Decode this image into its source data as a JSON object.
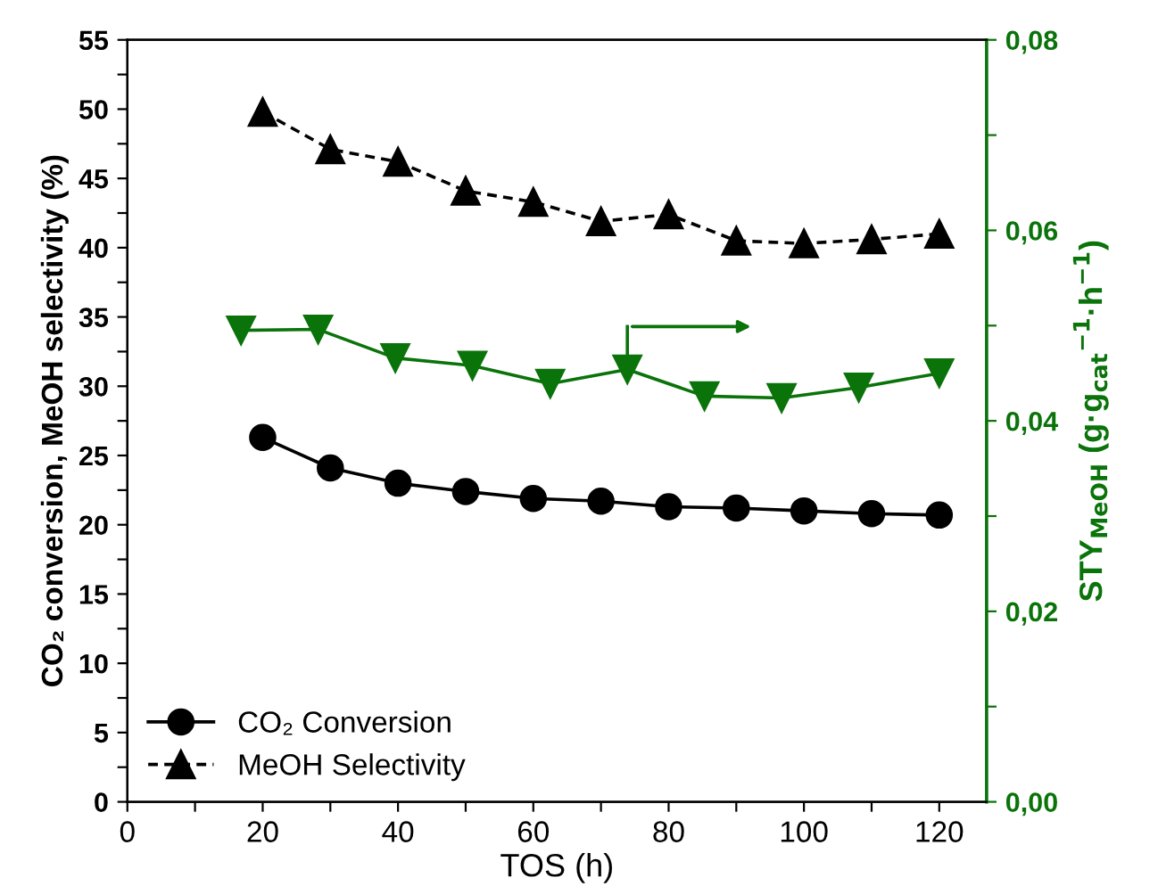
{
  "chart_data": {
    "type": "line",
    "xlabel": "TOS (h)",
    "ylabel": "CO₂ conversion, MeOH selectivity (%)",
    "y2label": "STY$_{MeOH}$ (g·g$_{cat}$$^{−1}$·h$^{−1}$)",
    "xlim": [
      0,
      127
    ],
    "xticks": [
      0,
      {
        "value": 10,
        "label": null
      },
      20,
      {
        "value": 30,
        "label": null
      },
      40,
      {
        "value": 50,
        "label": null
      },
      60,
      {
        "value": 70,
        "label": null
      },
      80,
      {
        "value": 90,
        "label": null
      },
      100,
      {
        "value": 110,
        "label": null
      },
      120
    ],
    "ylim": [
      0,
      55
    ],
    "yticks": [
      0,
      {
        "value": 2.5,
        "label": null
      },
      5,
      {
        "value": 7.5,
        "label": null
      },
      10,
      {
        "value": 12.5,
        "label": null
      },
      15,
      {
        "value": 17.5,
        "label": null
      },
      20,
      {
        "value": 22.5,
        "label": null
      },
      25,
      {
        "value": 27.5,
        "label": null
      },
      30,
      {
        "value": 32.5,
        "label": null
      },
      35,
      {
        "value": 37.5,
        "label": null
      },
      40,
      {
        "value": 42.5,
        "label": null
      },
      45,
      {
        "value": 47.5,
        "label": null
      },
      50,
      {
        "value": 52.5,
        "label": null
      },
      55
    ],
    "y2lim": [
      0,
      0.08
    ],
    "y2ticks": [
      {
        "value": 0,
        "label": "0,00"
      },
      {
        "value": 0.01,
        "label": null
      },
      {
        "value": 0.02,
        "label": "0,02"
      },
      {
        "value": 0.03,
        "label": null
      },
      {
        "value": 0.04,
        "label": "0,04"
      },
      {
        "value": 0.05,
        "label": null
      },
      {
        "value": 0.06,
        "label": "0,06"
      },
      {
        "value": 0.07,
        "label": null
      },
      {
        "value": 0.08,
        "label": "0,08"
      }
    ],
    "grid": false,
    "legend": "bottom left",
    "series": [
      {
        "name": "CO₂ Conversion",
        "color": "#000000",
        "marker": "circle",
        "line_style": "solid",
        "x": [
          20,
          30,
          40,
          50,
          60,
          70,
          80,
          90,
          100,
          110,
          120
        ],
        "values": [
          26.3,
          24.1,
          23.0,
          22.4,
          21.9,
          21.7,
          21.3,
          21.2,
          21.0,
          20.8,
          20.7
        ]
      },
      {
        "name": "MeOH Selectivity",
        "color": "#000000",
        "marker": "triangle",
        "line_style": "dashed",
        "x": [
          20,
          30,
          40,
          50,
          60,
          70,
          80,
          90,
          100,
          110,
          120
        ],
        "values": [
          49.8,
          47.1,
          46.2,
          44.1,
          43.3,
          41.9,
          42.4,
          40.5,
          40.3,
          40.6,
          41.0
        ]
      },
      {
        "color": "#0a730a",
        "marker": "triangle_down",
        "line_style": "solid",
        "axis": "y2",
        "x": [
          16.8,
          28.2,
          39.6,
          51,
          62.5,
          73.9,
          85.3,
          96.7,
          108.1,
          120
        ],
        "values": [
          0.0495,
          0.0496,
          0.0466,
          0.0458,
          0.0439,
          0.0454,
          0.0426,
          0.0424,
          0.0435,
          0.045
        ]
      }
    ]
  }
}
